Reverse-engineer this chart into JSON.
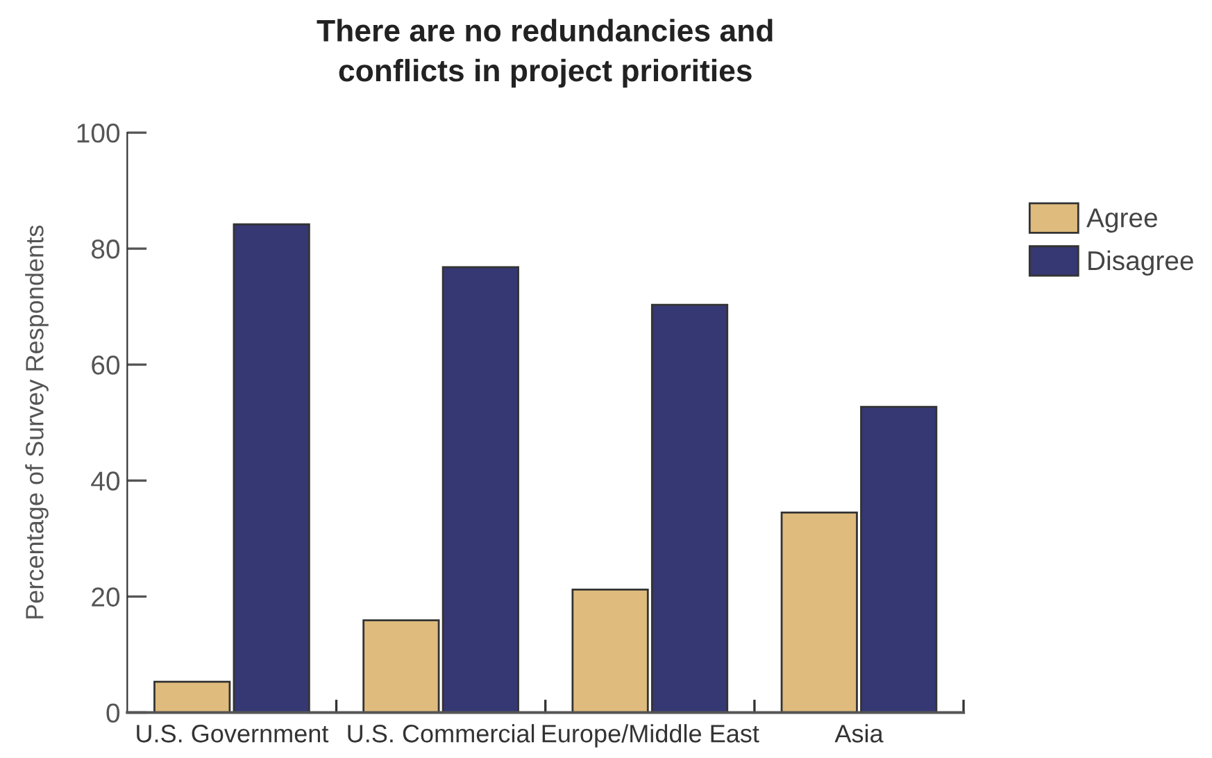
{
  "chart_data": {
    "type": "bar",
    "title": "There are no redundancies and\nconflicts in project priorities",
    "ylabel": "Percentage of Survey Respondents",
    "categories": [
      "U.S. Government",
      "U.S. Commercial",
      "Europe/Middle East",
      "Asia"
    ],
    "series": [
      {
        "name": "Agree",
        "color": "#dfbc7d",
        "values": [
          5.3,
          15.9,
          21.2,
          34.5
        ]
      },
      {
        "name": "Disagree",
        "color": "#363874",
        "values": [
          84.2,
          76.8,
          70.3,
          52.7
        ]
      }
    ],
    "ylim": [
      0,
      100
    ],
    "yticks": [
      0,
      20,
      40,
      60,
      80,
      100
    ],
    "grid": false,
    "legend": "right"
  }
}
